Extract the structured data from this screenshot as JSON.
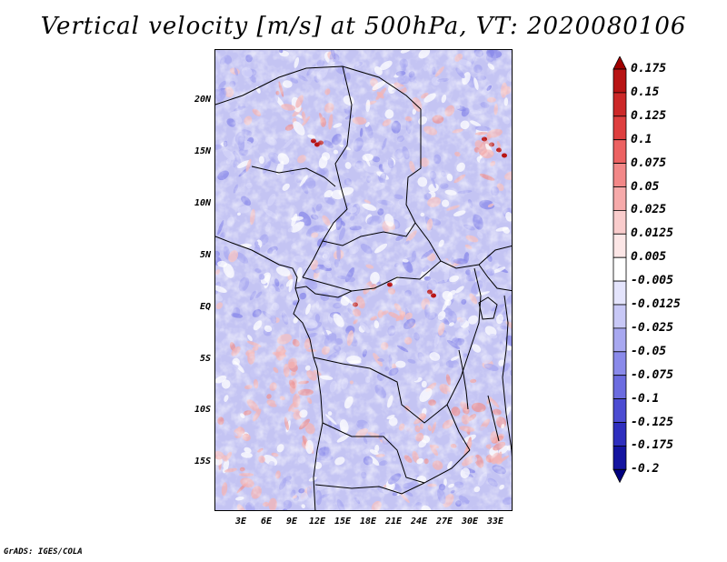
{
  "title": "Vertical velocity [m/s] at 500hPa, VT: 2020080106",
  "footer": "GrADS: IGES/COLA",
  "lat_labels": [
    "20N",
    "15N",
    "10N",
    "5N",
    "EQ",
    "5S",
    "10S",
    "15S"
  ],
  "lon_labels": [
    "3E",
    "6E",
    "9E",
    "12E",
    "15E",
    "18E",
    "21E",
    "24E",
    "27E",
    "30E",
    "33E"
  ],
  "colorbar": {
    "levels": [
      "0.175",
      "0.15",
      "0.125",
      "0.1",
      "0.075",
      "0.05",
      "0.025",
      "0.0125",
      "0.005",
      "-0.005",
      "-0.0125",
      "-0.025",
      "-0.05",
      "-0.075",
      "-0.1",
      "-0.125",
      "-0.175",
      "-0.2"
    ],
    "colors": [
      "#a00000",
      "#b81414",
      "#cc2828",
      "#de3f3f",
      "#ec6262",
      "#f28888",
      "#f6aaaa",
      "#f9cccc",
      "#fce6e6",
      "#ffffff",
      "#e4e4fc",
      "#c8c8f6",
      "#a8a8f0",
      "#8a8aea",
      "#6c6ce0",
      "#4c4cd2",
      "#2e2ebe",
      "#1414a0",
      "#000080"
    ]
  }
}
